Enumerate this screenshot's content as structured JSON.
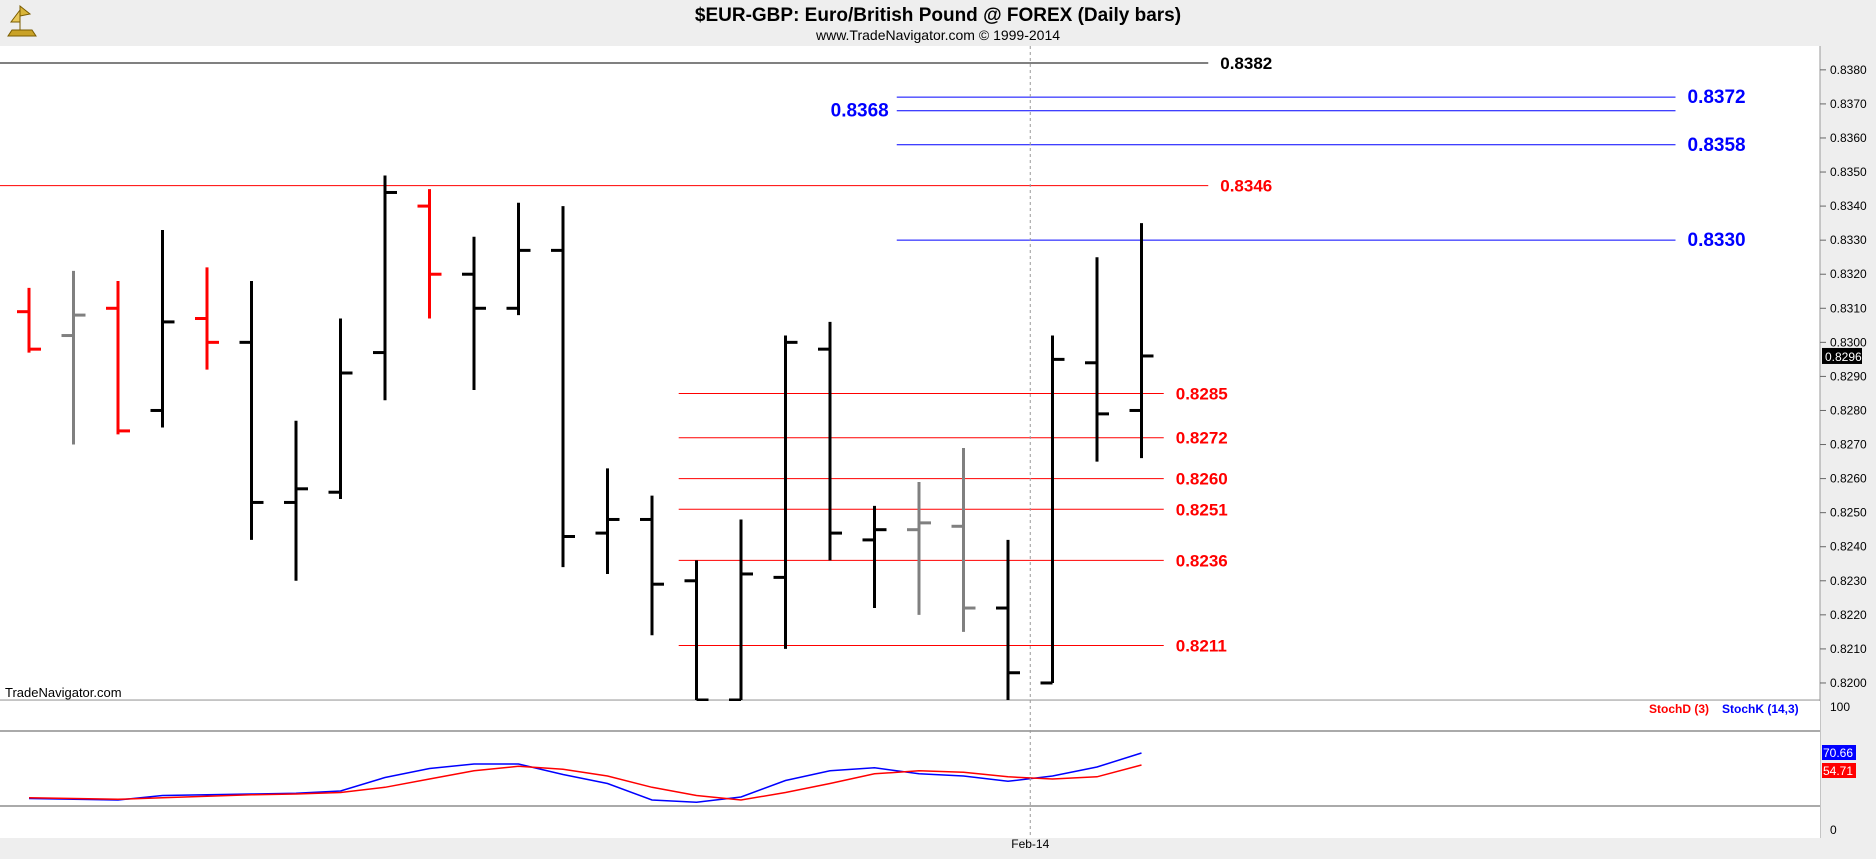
{
  "header": {
    "title": "$EUR-GBP:  Euro/British Pound @ FOREX  (Daily bars)",
    "subtitle": "www.TradeNavigator.com © 1999-2014",
    "logo_icon": "trade-navigator-logo-icon"
  },
  "watermark": "TradeNavigator.com",
  "colors": {
    "up_bar": "#000000",
    "down_bar": "#ff0000",
    "neutral_bar": "#808080",
    "level_red": "#ff0000",
    "level_blue": "#0000ff",
    "level_black": "#000000",
    "stoch_k": "#0000ff",
    "stoch_d": "#ff0000"
  },
  "chart_data": [
    {
      "type": "ohlc",
      "name": "price",
      "ylim": [
        0.8195,
        0.8387
      ],
      "y_ticks": [
        "0.8200",
        "0.8210",
        "0.8220",
        "0.8230",
        "0.8240",
        "0.8250",
        "0.8260",
        "0.8270",
        "0.8280",
        "0.8290",
        "0.8300",
        "0.8310",
        "0.8320",
        "0.8330",
        "0.8340",
        "0.8350",
        "0.8360",
        "0.8370",
        "0.8380"
      ],
      "last_price_label": "0.8296",
      "bars": [
        {
          "o": 0.8309,
          "h": 0.8316,
          "l": 0.8297,
          "c": 0.8298,
          "color": "red"
        },
        {
          "o": 0.8302,
          "h": 0.8321,
          "l": 0.827,
          "c": 0.8308,
          "color": "gray"
        },
        {
          "o": 0.831,
          "h": 0.8318,
          "l": 0.8273,
          "c": 0.8274,
          "color": "red"
        },
        {
          "o": 0.828,
          "h": 0.8333,
          "l": 0.8275,
          "c": 0.8306,
          "color": "black"
        },
        {
          "o": 0.8307,
          "h": 0.8322,
          "l": 0.8292,
          "c": 0.83,
          "color": "red"
        },
        {
          "o": 0.83,
          "h": 0.8318,
          "l": 0.8242,
          "c": 0.8253,
          "color": "black"
        },
        {
          "o": 0.8253,
          "h": 0.8277,
          "l": 0.823,
          "c": 0.8257,
          "color": "black"
        },
        {
          "o": 0.8256,
          "h": 0.8307,
          "l": 0.8254,
          "c": 0.8291,
          "color": "black"
        },
        {
          "o": 0.8297,
          "h": 0.8349,
          "l": 0.8283,
          "c": 0.8344,
          "color": "black"
        },
        {
          "o": 0.834,
          "h": 0.8345,
          "l": 0.8307,
          "c": 0.832,
          "color": "red"
        },
        {
          "o": 0.832,
          "h": 0.8331,
          "l": 0.8286,
          "c": 0.831,
          "color": "black"
        },
        {
          "o": 0.831,
          "h": 0.8341,
          "l": 0.8308,
          "c": 0.8327,
          "color": "black"
        },
        {
          "o": 0.8327,
          "h": 0.834,
          "l": 0.8234,
          "c": 0.8243,
          "color": "black"
        },
        {
          "o": 0.8244,
          "h": 0.8263,
          "l": 0.8232,
          "c": 0.8248,
          "color": "black"
        },
        {
          "o": 0.8248,
          "h": 0.8255,
          "l": 0.8214,
          "c": 0.8229,
          "color": "black"
        },
        {
          "o": 0.823,
          "h": 0.8236,
          "l": 0.8195,
          "c": 0.8195,
          "color": "black"
        },
        {
          "o": 0.8195,
          "h": 0.8248,
          "l": 0.8195,
          "c": 0.8232,
          "color": "black"
        },
        {
          "o": 0.8231,
          "h": 0.8302,
          "l": 0.821,
          "c": 0.83,
          "color": "black"
        },
        {
          "o": 0.8298,
          "h": 0.8306,
          "l": 0.8236,
          "c": 0.8244,
          "color": "black"
        },
        {
          "o": 0.8242,
          "h": 0.8252,
          "l": 0.8222,
          "c": 0.8245,
          "color": "black"
        },
        {
          "o": 0.8245,
          "h": 0.8259,
          "l": 0.822,
          "c": 0.8247,
          "color": "gray"
        },
        {
          "o": 0.8246,
          "h": 0.8269,
          "l": 0.8215,
          "c": 0.8222,
          "color": "gray"
        },
        {
          "o": 0.8222,
          "h": 0.8242,
          "l": 0.8195,
          "c": 0.8203,
          "color": "black"
        },
        {
          "o": 0.82,
          "h": 0.8302,
          "l": 0.82,
          "c": 0.8295,
          "color": "black"
        },
        {
          "o": 0.8294,
          "h": 0.8325,
          "l": 0.8265,
          "c": 0.8279,
          "color": "black"
        },
        {
          "o": 0.828,
          "h": 0.8335,
          "l": 0.8266,
          "c": 0.8296,
          "color": "black"
        }
      ],
      "levels": [
        {
          "value": 0.8382,
          "label": "0.8382",
          "color": "black",
          "from_bar": -1,
          "to_bar": 26.5,
          "label_side": "right"
        },
        {
          "value": 0.8372,
          "label": "0.8372",
          "color": "blue",
          "from_bar": 19.5,
          "to_bar": 37,
          "label_side": "right"
        },
        {
          "value": 0.8368,
          "label": "0.8368",
          "color": "blue",
          "from_bar": 19.5,
          "to_bar": 37,
          "label_side": "left"
        },
        {
          "value": 0.8358,
          "label": "0.8358",
          "color": "blue",
          "from_bar": 19.5,
          "to_bar": 37,
          "label_side": "right"
        },
        {
          "value": 0.8346,
          "label": "0.8346",
          "color": "red",
          "from_bar": -1,
          "to_bar": 26.5,
          "label_side": "right"
        },
        {
          "value": 0.833,
          "label": "0.8330",
          "color": "blue",
          "from_bar": 19.5,
          "to_bar": 37,
          "label_side": "right"
        },
        {
          "value": 0.8285,
          "label": "0.8285",
          "color": "red",
          "from_bar": 14.6,
          "to_bar": 25.5,
          "label_side": "right"
        },
        {
          "value": 0.8272,
          "label": "0.8272",
          "color": "red",
          "from_bar": 14.6,
          "to_bar": 25.5,
          "label_side": "right"
        },
        {
          "value": 0.826,
          "label": "0.8260",
          "color": "red",
          "from_bar": 14.6,
          "to_bar": 25.5,
          "label_side": "right"
        },
        {
          "value": 0.8251,
          "label": "0.8251",
          "color": "red",
          "from_bar": 14.6,
          "to_bar": 25.5,
          "label_side": "right"
        },
        {
          "value": 0.8236,
          "label": "0.8236",
          "color": "red",
          "from_bar": 14.6,
          "to_bar": 25.5,
          "label_side": "right"
        },
        {
          "value": 0.8211,
          "label": "0.8211",
          "color": "red",
          "from_bar": 14.6,
          "to_bar": 25.5,
          "label_side": "right"
        }
      ],
      "x_tick": {
        "label": "Feb-14",
        "at_bar": 22.5
      }
    },
    {
      "type": "line",
      "name": "stochastic",
      "ylim": [
        0,
        100
      ],
      "y_ticks": [
        "100",
        "0"
      ],
      "legend": [
        "StochD (3)",
        "StochK (14,3)"
      ],
      "series": [
        {
          "name": "StochK (14,3)",
          "color": "blue",
          "last_label": "70.66",
          "values": [
            10,
            9,
            8,
            14,
            15,
            16,
            17,
            20,
            38,
            50,
            56,
            56,
            42,
            30,
            8,
            5,
            12,
            34,
            47,
            51,
            43,
            40,
            33,
            40,
            52,
            70.66
          ]
        },
        {
          "name": "StochD (3)",
          "color": "red",
          "last_label": "54.71",
          "values": [
            11,
            10,
            9,
            11,
            13,
            15,
            16,
            18,
            25,
            36,
            47,
            53,
            49,
            40,
            25,
            14,
            8,
            18,
            30,
            43,
            47,
            45,
            39,
            36,
            39,
            54.71
          ]
        }
      ]
    }
  ]
}
